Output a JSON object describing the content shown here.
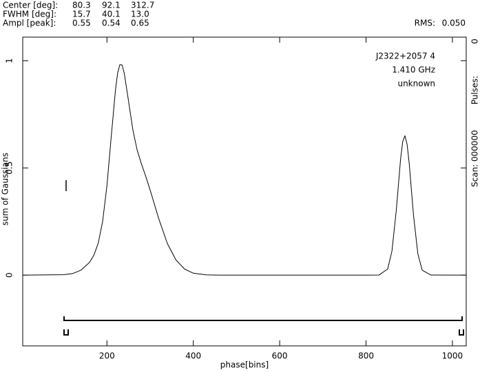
{
  "chart_data": {
    "type": "line",
    "header_table": [
      [
        "Center [deg]:",
        "80.3",
        "92.1",
        "312.7"
      ],
      [
        "FWHM  [deg]:",
        "15.7",
        "40.1",
        "13.0"
      ],
      [
        "Ampl  [peak]:",
        "0.55",
        "0.54",
        "0.65"
      ]
    ],
    "rms_label": "RMS:",
    "rms_value": "0.050",
    "side_labels": [
      "Scan: 000000",
      "Pulses:",
      "0"
    ],
    "annotations": [
      "J2322+2057 4",
      "1.410 GHz",
      "unknown"
    ],
    "xlabel": "phase[bins]",
    "ylabel": "sum of Gaussians",
    "x": [
      5,
      100,
      120,
      140,
      160,
      170,
      180,
      190,
      200,
      210,
      220,
      225,
      230,
      235,
      240,
      250,
      260,
      270,
      280,
      290,
      300,
      320,
      340,
      360,
      380,
      400,
      430,
      460,
      500,
      600,
      700,
      800,
      830,
      850,
      860,
      870,
      880,
      885,
      890,
      895,
      900,
      910,
      920,
      930,
      950,
      1032
    ],
    "series": [
      {
        "color": "#000000",
        "values": [
          0,
          0.002,
          0.007,
          0.023,
          0.06,
          0.094,
          0.15,
          0.25,
          0.417,
          0.647,
          0.869,
          0.945,
          0.982,
          0.98,
          0.943,
          0.812,
          0.678,
          0.583,
          0.518,
          0.46,
          0.397,
          0.263,
          0.147,
          0.07,
          0.028,
          0.009,
          0.001,
          0,
          0,
          0,
          0,
          0,
          0.0005,
          0.028,
          0.112,
          0.301,
          0.542,
          0.624,
          0.65,
          0.611,
          0.52,
          0.278,
          0.099,
          0.023,
          0.0004,
          0
        ]
      }
    ],
    "xlim": [
      5,
      1032
    ],
    "ylim": [
      -0.33,
      1.11
    ],
    "xticks": [
      200,
      400,
      600,
      800,
      1000
    ],
    "yticks": [
      0,
      0.5,
      1
    ]
  }
}
